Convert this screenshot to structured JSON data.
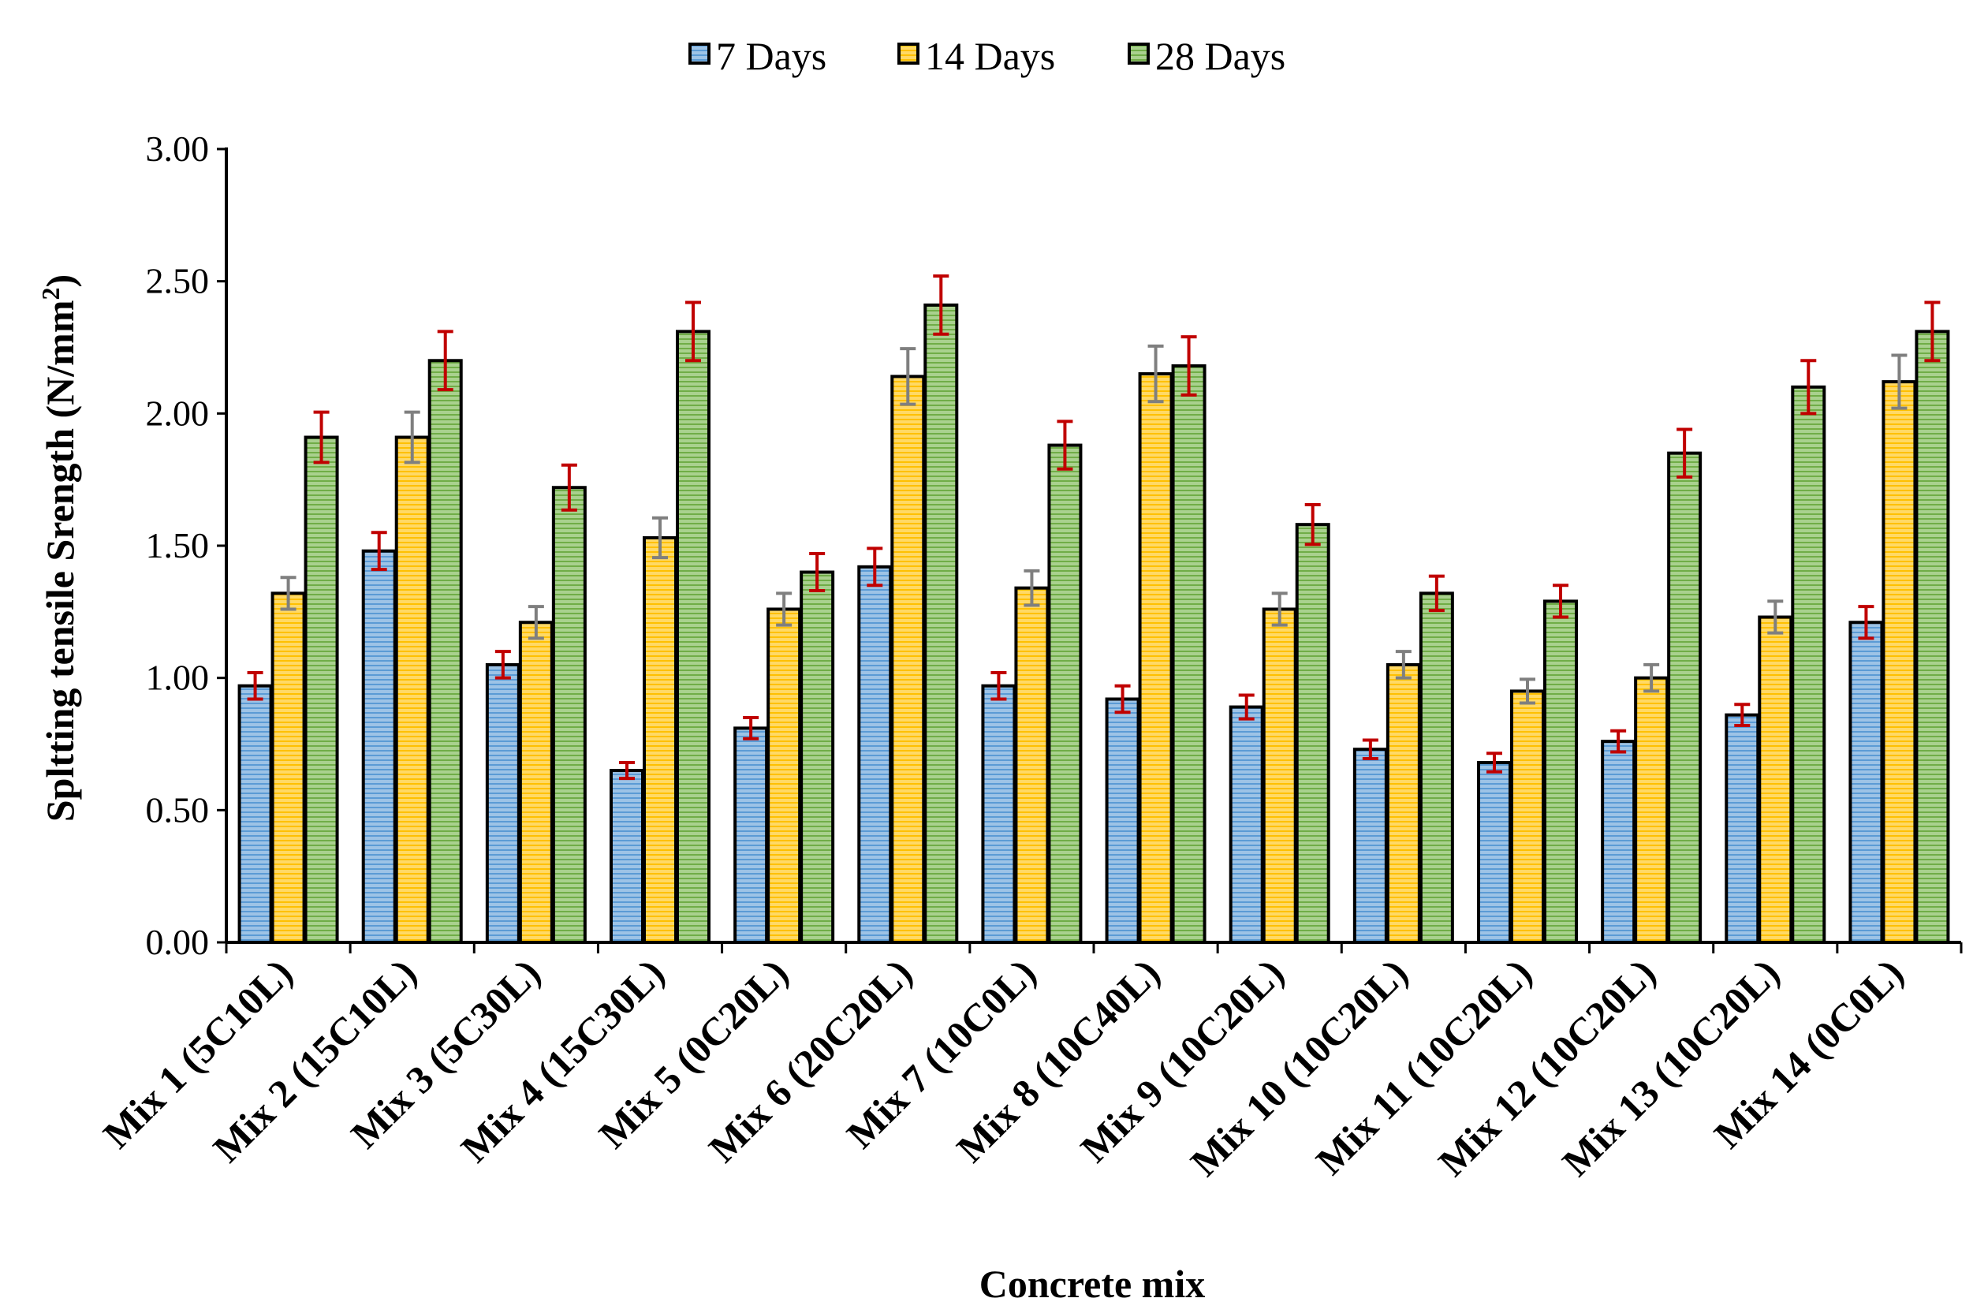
{
  "chart_data": {
    "type": "bar",
    "title": "",
    "xlabel": "Concrete mix",
    "ylabel": "Spltting tensile Srength (N/mm",
    "ylabel_superscript": "2",
    "ylabel_close": ")",
    "ylim": [
      0,
      3
    ],
    "yticks": [
      0,
      0.5,
      1,
      1.5,
      2,
      2.5,
      3
    ],
    "ytick_labels": [
      "0.00",
      "0.50",
      "1.00",
      "1.50",
      "2.00",
      "2.50",
      "3.00"
    ],
    "legend_position": "top-center",
    "categories": [
      "Mix 1 (5C10L)",
      "Mix 2 (15C10L)",
      "Mix 3 (5C30L)",
      "Mix 4 (15C30L)",
      "Mix 5 (0C20L)",
      "Mix 6 (20C20L)",
      "Mix 7 (10C0L)",
      "Mix 8 (10C40L)",
      "Mix 9 (10C20L)",
      "Mix 10 (10C20L)",
      "Mix 11 (10C20L)",
      "Mix 12 (10C20L)",
      "Mix 13 (10C20L)",
      "Mix 14 (0C0L)"
    ],
    "series": [
      {
        "name": "7 Days",
        "fill": "#9dc3e6",
        "stripe": "#5b9bd5",
        "error_color": "#c00000",
        "values": [
          0.97,
          1.48,
          1.05,
          0.65,
          0.81,
          1.42,
          0.97,
          0.92,
          0.89,
          0.73,
          0.68,
          0.76,
          0.86,
          1.21
        ],
        "errors": [
          0.05,
          0.07,
          0.05,
          0.03,
          0.04,
          0.07,
          0.05,
          0.05,
          0.045,
          0.035,
          0.035,
          0.04,
          0.04,
          0.06
        ]
      },
      {
        "name": "14 Days",
        "fill": "#ffd966",
        "stripe": "#ffc000",
        "error_color": "#7f7f7f",
        "values": [
          1.32,
          1.91,
          1.21,
          1.53,
          1.26,
          2.14,
          1.34,
          2.15,
          1.26,
          1.05,
          0.95,
          1.0,
          1.23,
          2.12
        ],
        "errors": [
          0.06,
          0.095,
          0.06,
          0.075,
          0.06,
          0.105,
          0.065,
          0.105,
          0.06,
          0.05,
          0.045,
          0.05,
          0.06,
          0.1
        ]
      },
      {
        "name": "28 Days",
        "fill": "#a9d18e",
        "stripe": "#70ad47",
        "error_color": "#c00000",
        "values": [
          1.91,
          2.2,
          1.72,
          2.31,
          1.4,
          2.41,
          1.88,
          2.18,
          1.58,
          1.32,
          1.29,
          1.85,
          2.1,
          2.31
        ],
        "errors": [
          0.095,
          0.11,
          0.085,
          0.11,
          0.07,
          0.11,
          0.09,
          0.11,
          0.075,
          0.065,
          0.06,
          0.09,
          0.1,
          0.11
        ]
      }
    ]
  }
}
